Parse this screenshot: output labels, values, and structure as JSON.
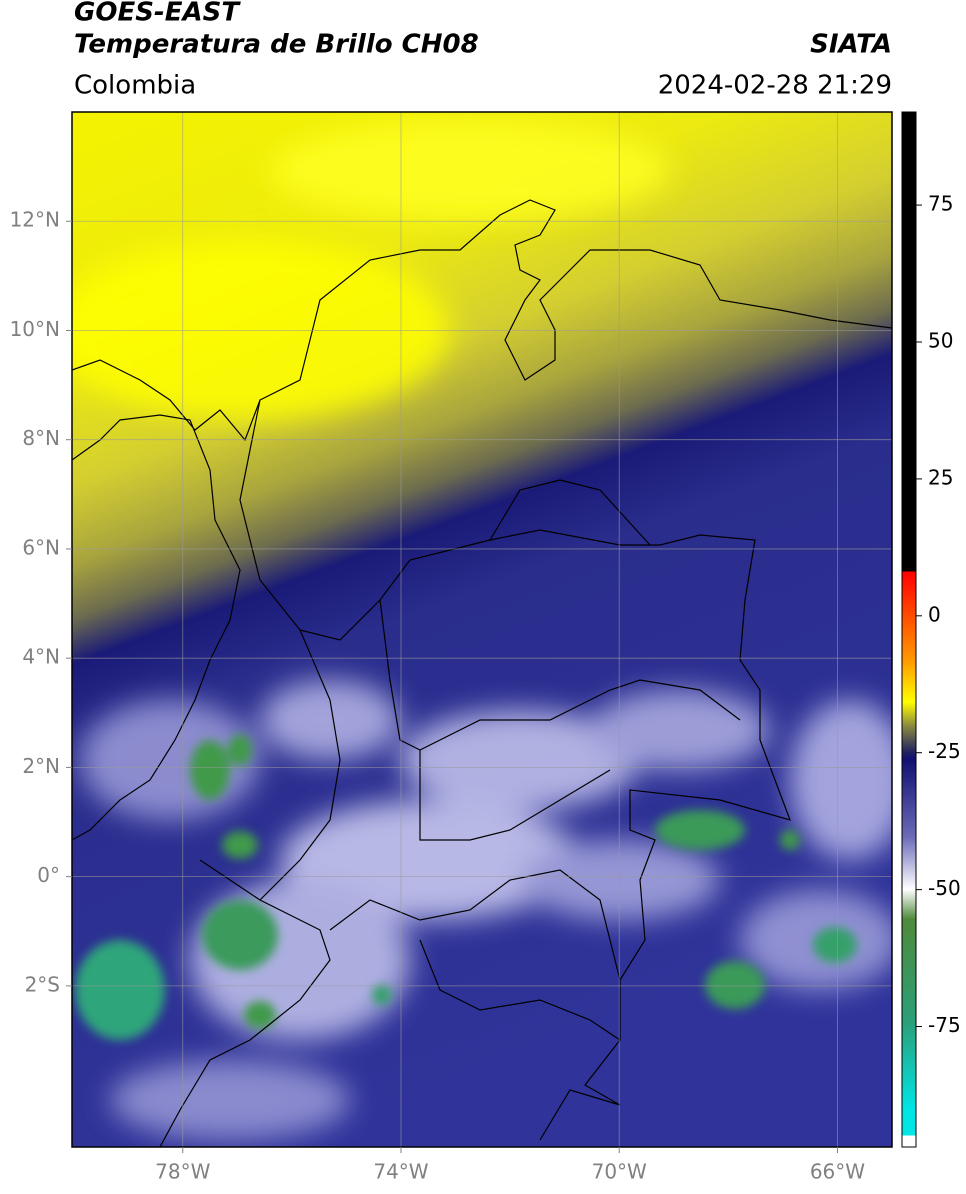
{
  "header": {
    "satellite": "GOES-EAST",
    "product": "Temperatura de Brillo CH08",
    "agency": "SIATA",
    "region": "Colombia",
    "datetime": "2024-02-28 21:29"
  },
  "map": {
    "xlim": [
      -80.03,
      -65.0
    ],
    "ylim": [
      -4.95,
      14.0
    ],
    "xticks": [
      {
        "value": -78,
        "label": "78°W"
      },
      {
        "value": -74,
        "label": "74°W"
      },
      {
        "value": -70,
        "label": "70°W"
      },
      {
        "value": -66,
        "label": "66°W"
      }
    ],
    "yticks": [
      {
        "value": 12,
        "label": "12°N"
      },
      {
        "value": 10,
        "label": "10°N"
      },
      {
        "value": 8,
        "label": "8°N"
      },
      {
        "value": 6,
        "label": "6°N"
      },
      {
        "value": 4,
        "label": "4°N"
      },
      {
        "value": 2,
        "label": "2°N"
      },
      {
        "value": 0,
        "label": "0°"
      },
      {
        "value": -2,
        "label": "2°S"
      }
    ],
    "grid": true
  },
  "colorbar": {
    "lim": [
      -97,
      92
    ],
    "ticks": [
      75,
      50,
      25,
      0,
      -25,
      -50,
      -75
    ]
  }
}
